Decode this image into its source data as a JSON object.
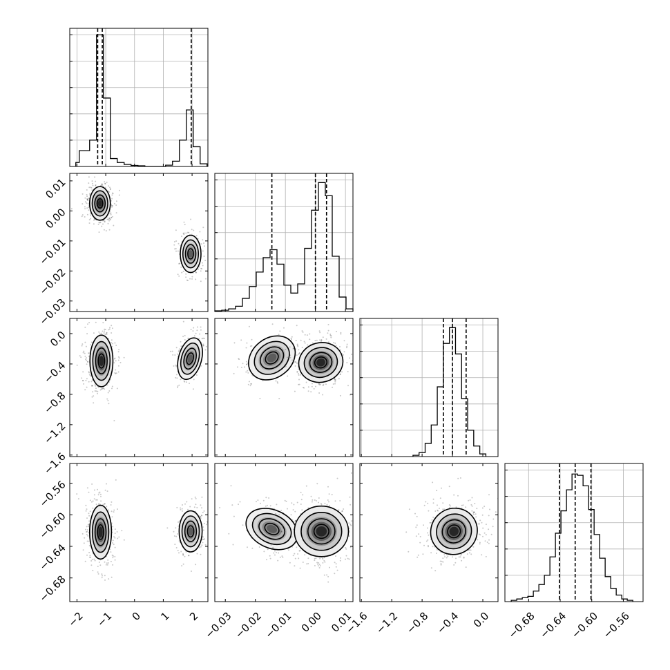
{
  "chart_data": {
    "type": "corner",
    "title": "",
    "parameters": [
      {
        "label": "",
        "range": [
          -2.25,
          2.55
        ],
        "ticks": [
          -2,
          -1,
          0,
          1,
          2
        ],
        "tick_labels": [
          "−2",
          "−1",
          "0",
          "1",
          "2"
        ]
      },
      {
        "label": "",
        "range": [
          -0.0335,
          0.0125
        ],
        "ticks": [
          -0.03,
          -0.02,
          -0.01,
          0.0,
          0.01
        ],
        "tick_labels": [
          "−0.03",
          "−0.02",
          "−0.01",
          "0.00",
          "0.01"
        ]
      },
      {
        "label": "",
        "range": [
          -1.62,
          0.2
        ],
        "ticks": [
          -1.6,
          -1.2,
          -0.8,
          -0.4,
          0.0
        ],
        "tick_labels": [
          "−1.6",
          "−1.2",
          "−0.8",
          "−0.4",
          "0.0"
        ]
      },
      {
        "label": "",
        "range": [
          -0.71,
          -0.535
        ],
        "ticks": [
          -0.68,
          -0.64,
          -0.6,
          -0.56
        ],
        "tick_labels": [
          "−0.68",
          "−0.64",
          "−0.60",
          "−0.56"
        ]
      }
    ],
    "histograms": [
      {
        "param": 0,
        "quantiles": [
          -1.28,
          -1.12,
          1.97
        ],
        "bins": [
          {
            "x0": -2.04,
            "x1": -1.92,
            "h": 0.03
          },
          {
            "x0": -1.92,
            "x1": -1.56,
            "h": 0.12
          },
          {
            "x0": -1.56,
            "x1": -1.32,
            "h": 0.2
          },
          {
            "x0": -1.32,
            "x1": -1.08,
            "h": 1.0
          },
          {
            "x0": -1.08,
            "x1": -0.84,
            "h": 0.52
          },
          {
            "x0": -0.84,
            "x1": -0.6,
            "h": 0.06
          },
          {
            "x0": -0.6,
            "x1": -0.36,
            "h": 0.03
          },
          {
            "x0": -0.36,
            "x1": -0.12,
            "h": 0.015
          },
          {
            "x0": -0.12,
            "x1": 0.12,
            "h": 0.008
          },
          {
            "x0": 0.12,
            "x1": 0.36,
            "h": 0.005
          },
          {
            "x0": 0.36,
            "x1": 0.6,
            "h": 0.0
          },
          {
            "x0": 0.6,
            "x1": 0.84,
            "h": 0.0
          },
          {
            "x0": 0.84,
            "x1": 1.08,
            "h": 0.0
          },
          {
            "x0": 1.08,
            "x1": 1.32,
            "h": 0.01
          },
          {
            "x0": 1.32,
            "x1": 1.56,
            "h": 0.04
          },
          {
            "x0": 1.56,
            "x1": 1.8,
            "h": 0.2
          },
          {
            "x0": 1.8,
            "x1": 2.04,
            "h": 0.43
          },
          {
            "x0": 2.04,
            "x1": 2.28,
            "h": 0.15
          },
          {
            "x0": 2.28,
            "x1": 2.52,
            "h": 0.02
          }
        ]
      },
      {
        "param": 1,
        "quantiles": [
          -0.0145,
          0.0,
          0.0037
        ],
        "bins": [
          {
            "x0": -0.0335,
            "x1": -0.0312,
            "h": 0.005
          },
          {
            "x0": -0.0312,
            "x1": -0.0289,
            "h": 0.01
          },
          {
            "x0": -0.0289,
            "x1": -0.0266,
            "h": 0.02
          },
          {
            "x0": -0.0266,
            "x1": -0.0243,
            "h": 0.04
          },
          {
            "x0": -0.0243,
            "x1": -0.022,
            "h": 0.1
          },
          {
            "x0": -0.022,
            "x1": -0.0197,
            "h": 0.19
          },
          {
            "x0": -0.0197,
            "x1": -0.0174,
            "h": 0.3
          },
          {
            "x0": -0.0174,
            "x1": -0.0151,
            "h": 0.41
          },
          {
            "x0": -0.0151,
            "x1": -0.0128,
            "h": 0.47
          },
          {
            "x0": -0.0128,
            "x1": -0.0105,
            "h": 0.36
          },
          {
            "x0": -0.0105,
            "x1": -0.0082,
            "h": 0.2
          },
          {
            "x0": -0.0082,
            "x1": -0.0059,
            "h": 0.14
          },
          {
            "x0": -0.0059,
            "x1": -0.0036,
            "h": 0.21
          },
          {
            "x0": -0.0036,
            "x1": -0.0013,
            "h": 0.48
          },
          {
            "x0": -0.0013,
            "x1": 0.001,
            "h": 0.77
          },
          {
            "x0": 0.001,
            "x1": 0.0033,
            "h": 0.98
          },
          {
            "x0": 0.0033,
            "x1": 0.0056,
            "h": 0.88
          },
          {
            "x0": 0.0056,
            "x1": 0.0079,
            "h": 0.42
          },
          {
            "x0": 0.0079,
            "x1": 0.0102,
            "h": 0.11
          },
          {
            "x0": 0.0102,
            "x1": 0.0125,
            "h": 0.02
          }
        ]
      },
      {
        "param": 2,
        "quantiles": [
          -0.52,
          -0.4,
          -0.22
        ],
        "bins": [
          {
            "x0": -0.92,
            "x1": -0.84,
            "h": 0.01
          },
          {
            "x0": -0.84,
            "x1": -0.76,
            "h": 0.03
          },
          {
            "x0": -0.76,
            "x1": -0.68,
            "h": 0.1
          },
          {
            "x0": -0.68,
            "x1": -0.6,
            "h": 0.24
          },
          {
            "x0": -0.6,
            "x1": -0.52,
            "h": 0.53
          },
          {
            "x0": -0.52,
            "x1": -0.44,
            "h": 0.86
          },
          {
            "x0": -0.44,
            "x1": -0.36,
            "h": 0.98
          },
          {
            "x0": -0.36,
            "x1": -0.28,
            "h": 0.78
          },
          {
            "x0": -0.28,
            "x1": -0.2,
            "h": 0.44
          },
          {
            "x0": -0.2,
            "x1": -0.12,
            "h": 0.2
          },
          {
            "x0": -0.12,
            "x1": -0.04,
            "h": 0.08
          },
          {
            "x0": -0.04,
            "x1": 0.04,
            "h": 0.02
          }
        ]
      },
      {
        "param": 3,
        "quantiles": [
          -0.641,
          -0.621,
          -0.601
        ],
        "bins": [
          {
            "x0": -0.702,
            "x1": -0.695,
            "h": 0.01
          },
          {
            "x0": -0.695,
            "x1": -0.688,
            "h": 0.02
          },
          {
            "x0": -0.688,
            "x1": -0.681,
            "h": 0.03
          },
          {
            "x0": -0.681,
            "x1": -0.674,
            "h": 0.04
          },
          {
            "x0": -0.674,
            "x1": -0.667,
            "h": 0.08
          },
          {
            "x0": -0.667,
            "x1": -0.66,
            "h": 0.13
          },
          {
            "x0": -0.66,
            "x1": -0.653,
            "h": 0.2
          },
          {
            "x0": -0.653,
            "x1": -0.646,
            "h": 0.34
          },
          {
            "x0": -0.646,
            "x1": -0.639,
            "h": 0.52
          },
          {
            "x0": -0.639,
            "x1": -0.632,
            "h": 0.69
          },
          {
            "x0": -0.632,
            "x1": -0.625,
            "h": 0.85
          },
          {
            "x0": -0.625,
            "x1": -0.618,
            "h": 0.97
          },
          {
            "x0": -0.618,
            "x1": -0.611,
            "h": 0.96
          },
          {
            "x0": -0.611,
            "x1": -0.604,
            "h": 0.88
          },
          {
            "x0": -0.604,
            "x1": -0.597,
            "h": 0.7
          },
          {
            "x0": -0.597,
            "x1": -0.59,
            "h": 0.51
          },
          {
            "x0": -0.59,
            "x1": -0.583,
            "h": 0.33
          },
          {
            "x0": -0.583,
            "x1": -0.576,
            "h": 0.19
          },
          {
            "x0": -0.576,
            "x1": -0.569,
            "h": 0.1
          },
          {
            "x0": -0.569,
            "x1": -0.562,
            "h": 0.05
          },
          {
            "x0": -0.562,
            "x1": -0.555,
            "h": 0.02
          },
          {
            "x0": -0.555,
            "x1": -0.548,
            "h": 0.01
          }
        ]
      }
    ],
    "clusters_2d": [
      {
        "x": 0,
        "y": 1,
        "blobs": [
          {
            "cx": -1.2,
            "cy": 0.0025,
            "sx": 0.18,
            "sy": 0.0028,
            "angle": 0,
            "weight": 1.0
          },
          {
            "cx": 1.95,
            "cy": -0.0143,
            "sx": 0.18,
            "sy": 0.0031,
            "angle": 0,
            "weight": 0.45
          }
        ]
      },
      {
        "x": 0,
        "y": 2,
        "blobs": [
          {
            "cx": -1.15,
            "cy": -0.36,
            "sx": 0.2,
            "sy": 0.17,
            "angle": 0,
            "weight": 1.0
          },
          {
            "cx": 1.93,
            "cy": -0.33,
            "sx": 0.2,
            "sy": 0.14,
            "angle": 15,
            "weight": 0.45
          }
        ]
      },
      {
        "x": 0,
        "y": 3,
        "blobs": [
          {
            "cx": -1.18,
            "cy": -0.622,
            "sx": 0.19,
            "sy": 0.017,
            "angle": 0,
            "weight": 1.0
          },
          {
            "cx": 1.95,
            "cy": -0.621,
            "sx": 0.2,
            "sy": 0.013,
            "angle": 0,
            "weight": 0.45
          }
        ]
      },
      {
        "x": 1,
        "y": 2,
        "blobs": [
          {
            "cx": -0.0145,
            "cy": -0.32,
            "sx": 0.0042,
            "sy": 0.13,
            "angle": -38,
            "weight": 0.45
          },
          {
            "cx": 0.0018,
            "cy": -0.38,
            "sx": 0.0037,
            "sy": 0.13,
            "angle": -15,
            "weight": 1.0
          }
        ]
      },
      {
        "x": 1,
        "y": 3,
        "blobs": [
          {
            "cx": -0.0145,
            "cy": -0.618,
            "sx": 0.0045,
            "sy": 0.012,
            "angle": 25,
            "weight": 0.45
          },
          {
            "cx": 0.002,
            "cy": -0.621,
            "sx": 0.0045,
            "sy": 0.016,
            "angle": 0,
            "weight": 1.0
          }
        ]
      },
      {
        "x": 2,
        "y": 3,
        "blobs": [
          {
            "cx": -0.38,
            "cy": -0.621,
            "sx": 0.15,
            "sy": 0.015,
            "angle": 50,
            "weight": 1.0
          }
        ]
      }
    ]
  }
}
